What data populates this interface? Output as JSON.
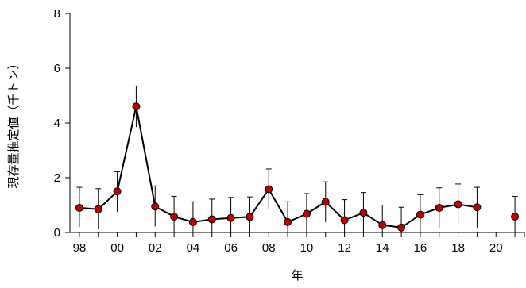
{
  "chart_data": {
    "type": "line",
    "title": "",
    "xlabel": "年",
    "ylabel": "現存量推定値（千トン）",
    "xlim": [
      1997.5,
      2021.5
    ],
    "ylim": [
      0,
      8
    ],
    "y_ticks": [
      0,
      2,
      4,
      6,
      8
    ],
    "y_tick_labels": [
      "0",
      "2",
      "4",
      "6",
      "8"
    ],
    "x_ticks": [
      1998,
      2000,
      2002,
      2004,
      2006,
      2008,
      2010,
      2012,
      2014,
      2016,
      2018,
      2020
    ],
    "x_tick_labels": [
      "98",
      "00",
      "02",
      "04",
      "06",
      "08",
      "10",
      "12",
      "14",
      "16",
      "18",
      "20"
    ],
    "grid": false,
    "legend": "none",
    "line_color": "#000000",
    "marker_color": "#c00000",
    "series": [
      {
        "points": [
          {
            "x": 1998,
            "y": 0.9,
            "err_low": 0.2,
            "err_high": 1.65
          },
          {
            "x": 1999,
            "y": 0.85,
            "err_low": 0.12,
            "err_high": 1.6
          },
          {
            "x": 2000,
            "y": 1.5,
            "err_low": 0.75,
            "err_high": 2.22
          },
          {
            "x": 2001,
            "y": 4.6,
            "err_low": 3.85,
            "err_high": 5.35
          },
          {
            "x": 2002,
            "y": 0.95,
            "err_low": 0.22,
            "err_high": 1.7
          },
          {
            "x": 2003,
            "y": 0.58,
            "err_low": 0.0,
            "err_high": 1.32
          },
          {
            "x": 2004,
            "y": 0.38,
            "err_low": 0.0,
            "err_high": 1.12
          },
          {
            "x": 2005,
            "y": 0.48,
            "err_low": 0.0,
            "err_high": 1.22
          },
          {
            "x": 2006,
            "y": 0.53,
            "err_low": 0.0,
            "err_high": 1.28
          },
          {
            "x": 2007,
            "y": 0.57,
            "err_low": 0.0,
            "err_high": 1.3
          },
          {
            "x": 2008,
            "y": 1.58,
            "err_low": 0.85,
            "err_high": 2.32
          },
          {
            "x": 2009,
            "y": 0.38,
            "err_low": 0.0,
            "err_high": 1.12
          },
          {
            "x": 2010,
            "y": 0.68,
            "err_low": 0.0,
            "err_high": 1.42
          },
          {
            "x": 2011,
            "y": 1.12,
            "err_low": 0.38,
            "err_high": 1.85
          },
          {
            "x": 2012,
            "y": 0.45,
            "err_low": 0.0,
            "err_high": 1.2
          },
          {
            "x": 2013,
            "y": 0.72,
            "err_low": 0.0,
            "err_high": 1.46
          },
          {
            "x": 2014,
            "y": 0.27,
            "err_low": 0.0,
            "err_high": 1.0
          },
          {
            "x": 2015,
            "y": 0.18,
            "err_low": 0.0,
            "err_high": 0.92
          },
          {
            "x": 2016,
            "y": 0.65,
            "err_low": 0.0,
            "err_high": 1.38
          },
          {
            "x": 2017,
            "y": 0.9,
            "err_low": 0.17,
            "err_high": 1.63
          },
          {
            "x": 2018,
            "y": 1.03,
            "err_low": 0.3,
            "err_high": 1.77
          },
          {
            "x": 2019,
            "y": 0.92,
            "err_low": 0.18,
            "err_high": 1.65
          },
          {
            "x": 2021,
            "y": 0.58,
            "err_low": 0.0,
            "err_high": 1.32,
            "connected": false
          }
        ]
      }
    ]
  }
}
